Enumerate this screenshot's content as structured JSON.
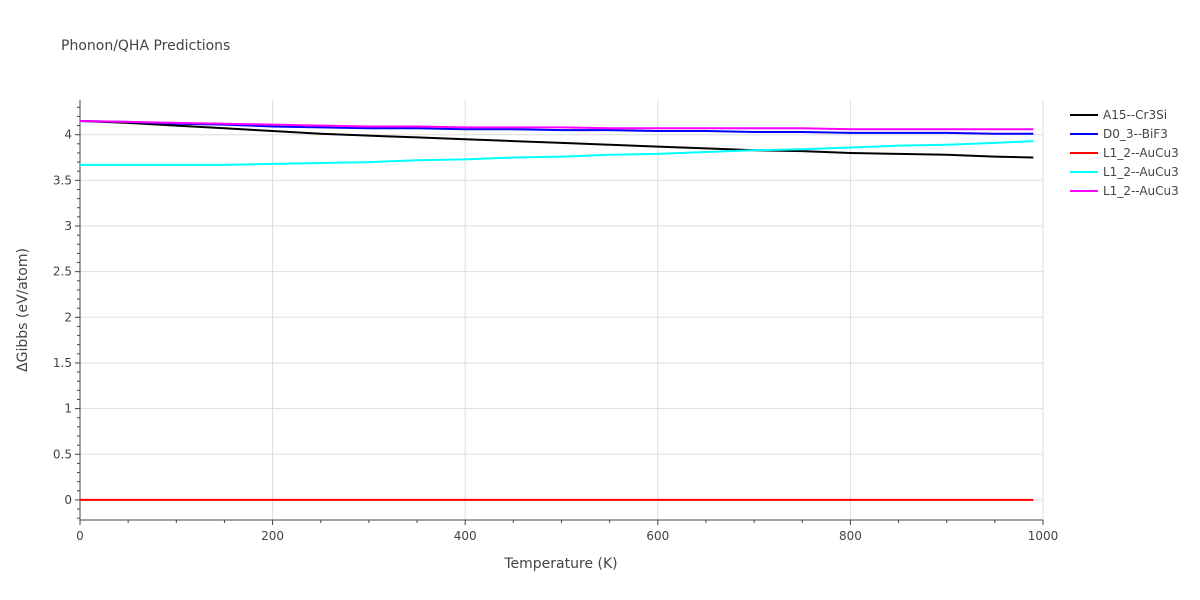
{
  "chart_data": {
    "type": "line",
    "title": "Phonon/QHA Predictions",
    "xlabel": "Temperature (K)",
    "ylabel": "ΔGibbs (eV/atom)",
    "xlim": [
      0,
      1000
    ],
    "ylim": [
      -0.22,
      4.38
    ],
    "x_ticks": [
      0,
      200,
      400,
      600,
      800,
      1000
    ],
    "x_tick_labels": [
      "0",
      "200",
      "400",
      "600",
      "800",
      "1000"
    ],
    "y_ticks": [
      0,
      0.5,
      1,
      1.5,
      2,
      2.5,
      3,
      3.5,
      4
    ],
    "y_tick_labels": [
      "0",
      "0.5",
      "1",
      "1.5",
      "2",
      "2.5",
      "3",
      "3.5",
      "4"
    ],
    "grid": true,
    "legend_position": "top-right",
    "x": [
      0,
      50,
      100,
      150,
      200,
      250,
      300,
      350,
      400,
      450,
      500,
      550,
      600,
      650,
      700,
      750,
      800,
      850,
      900,
      950,
      990
    ],
    "series": [
      {
        "name": "A15--Cr3Si",
        "color": "#000000",
        "values": [
          4.15,
          4.13,
          4.1,
          4.07,
          4.04,
          4.01,
          3.99,
          3.97,
          3.95,
          3.93,
          3.91,
          3.89,
          3.87,
          3.85,
          3.83,
          3.82,
          3.8,
          3.79,
          3.78,
          3.76,
          3.75
        ]
      },
      {
        "name": "D0_3--BiF3",
        "color": "#0000ff",
        "values": [
          4.15,
          4.14,
          4.12,
          4.11,
          4.09,
          4.08,
          4.07,
          4.07,
          4.06,
          4.06,
          4.05,
          4.05,
          4.04,
          4.04,
          4.03,
          4.03,
          4.02,
          4.02,
          4.02,
          4.01,
          4.01
        ]
      },
      {
        "name": "L1_2--AuCu3",
        "color": "#ff0000",
        "values": [
          0,
          0,
          0,
          0,
          0,
          0,
          0,
          0,
          0,
          0,
          0,
          0,
          0,
          0,
          0,
          0,
          0,
          0,
          0,
          0,
          0
        ]
      },
      {
        "name": "L1_2--AuCu3",
        "color": "#00ffff",
        "values": [
          3.67,
          3.67,
          3.67,
          3.67,
          3.68,
          3.69,
          3.7,
          3.72,
          3.73,
          3.75,
          3.76,
          3.78,
          3.79,
          3.81,
          3.83,
          3.84,
          3.86,
          3.88,
          3.89,
          3.91,
          3.93
        ]
      },
      {
        "name": "L1_2--AuCu3",
        "color": "#ff00ff",
        "values": [
          4.15,
          4.14,
          4.13,
          4.12,
          4.11,
          4.1,
          4.09,
          4.09,
          4.08,
          4.08,
          4.08,
          4.07,
          4.07,
          4.07,
          4.07,
          4.07,
          4.06,
          4.06,
          4.06,
          4.06,
          4.06
        ]
      }
    ]
  }
}
